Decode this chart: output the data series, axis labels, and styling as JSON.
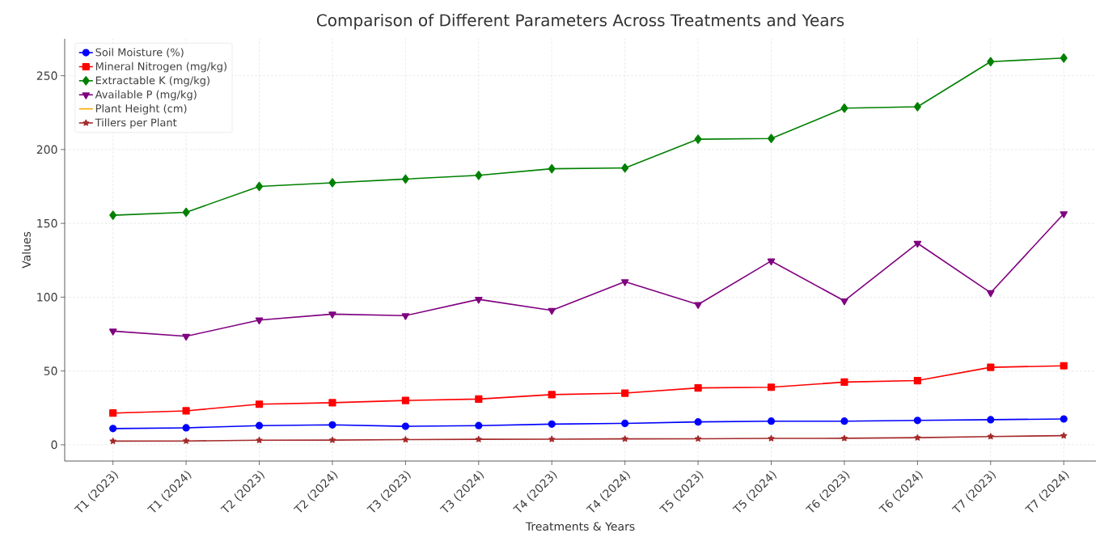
{
  "chart_data": {
    "type": "line",
    "title": "Comparison of Different Parameters Across Treatments and Years",
    "xlabel": "Treatments & Years",
    "ylabel": "Values",
    "categories": [
      "T1 (2023)",
      "T1 (2024)",
      "T2 (2023)",
      "T2 (2024)",
      "T3 (2023)",
      "T3 (2024)",
      "T4 (2023)",
      "T4 (2024)",
      "T5 (2023)",
      "T5 (2024)",
      "T6 (2023)",
      "T6 (2024)",
      "T7 (2023)",
      "T7 (2024)"
    ],
    "series": [
      {
        "name": "Soil Moisture (%)",
        "color": "#0000ff",
        "marker": "circle",
        "values": [
          11,
          11.5,
          13,
          13.5,
          12.5,
          13,
          14,
          14.5,
          15.5,
          16,
          16,
          16.5,
          17,
          17.5
        ]
      },
      {
        "name": "Mineral Nitrogen (mg/kg)",
        "color": "#ff0000",
        "marker": "square",
        "values": [
          21.5,
          23,
          27.5,
          28.5,
          30,
          31,
          34,
          35,
          38.5,
          39,
          42.5,
          43.5,
          52.5,
          53.5
        ]
      },
      {
        "name": "Extractable K (mg/kg)",
        "color": "#008000",
        "marker": "diamond",
        "values": [
          155.5,
          157.5,
          175,
          177.5,
          180,
          182.5,
          187,
          187.5,
          207,
          207.5,
          228,
          229,
          259.5,
          262
        ]
      },
      {
        "name": "Available P (mg/kg)",
        "color": "#800080",
        "marker": "triangle",
        "values": [
          77,
          73.5,
          84.5,
          88.5,
          87.5,
          98.5,
          91,
          110.5,
          95,
          124.5,
          97.5,
          136.5,
          103,
          156.5
        ]
      },
      {
        "name": "Plant Height (cm)",
        "color": "#ffa500",
        "marker": "none",
        "values": [
          null,
          null,
          null,
          null,
          null,
          null,
          null,
          null,
          null,
          null,
          null,
          null,
          null,
          null
        ]
      },
      {
        "name": "Tillers per Plant",
        "color": "#a52a2a",
        "marker": "star",
        "values": [
          2.5,
          2.6,
          3.1,
          3.2,
          3.5,
          3.7,
          3.8,
          4.0,
          4.1,
          4.3,
          4.4,
          4.8,
          5.6,
          6.2
        ]
      }
    ],
    "ylim": [
      -11,
      275
    ],
    "yticks": [
      0,
      50,
      100,
      150,
      200,
      250
    ],
    "grid": true,
    "legend": "top left",
    "line_style": "solid"
  }
}
